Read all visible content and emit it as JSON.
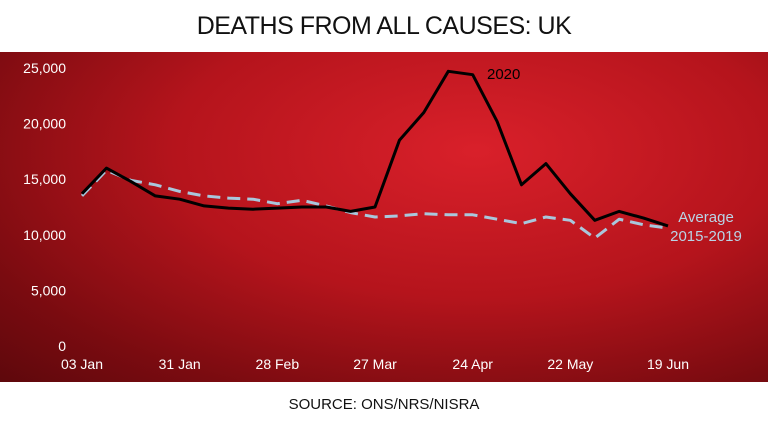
{
  "title": "DEATHS FROM ALL CAUSES: UK",
  "source": "SOURCE: ONS/NRS/NISRA",
  "colors": {
    "panel": "#b5141c",
    "series_2020": "#000000",
    "series_average": "#a9c7dc",
    "text": "#ffffff"
  },
  "chart_data": {
    "type": "line",
    "title": "DEATHS FROM ALL CAUSES: UK",
    "xlabel": "",
    "ylabel": "",
    "ylim": [
      0,
      25000
    ],
    "y_ticks": [
      "25,000",
      "20,000",
      "15,000",
      "10,000",
      "5,000",
      "0"
    ],
    "x_ticks": [
      "03 Jan",
      "31 Jan",
      "28 Feb",
      "27 Mar",
      "24 Apr",
      "22 May",
      "19 Jun"
    ],
    "x": [
      "03 Jan",
      "10 Jan",
      "17 Jan",
      "24 Jan",
      "31 Jan",
      "07 Feb",
      "14 Feb",
      "21 Feb",
      "28 Feb",
      "06 Mar",
      "13 Mar",
      "20 Mar",
      "27 Mar",
      "03 Apr",
      "10 Apr",
      "17 Apr",
      "24 Apr",
      "01 May",
      "08 May",
      "15 May",
      "22 May",
      "29 May",
      "05 Jun",
      "12 Jun",
      "19 Jun"
    ],
    "series": [
      {
        "name": "2020",
        "style": "solid",
        "values": [
          13700,
          16000,
          14800,
          13500,
          13200,
          12600,
          12400,
          12300,
          12400,
          12500,
          12500,
          12100,
          12500,
          18500,
          21000,
          24700,
          24400,
          20200,
          14500,
          16400,
          13700,
          11300,
          12100,
          11500,
          10800
        ]
      },
      {
        "name": "Average 2015-2019",
        "style": "dashed",
        "values": [
          13500,
          15800,
          14900,
          14500,
          13900,
          13500,
          13300,
          13200,
          12800,
          13100,
          12600,
          12000,
          11600,
          11700,
          11900,
          11800,
          11800,
          11400,
          11000,
          11600,
          11300,
          9700,
          11400,
          10900,
          10600
        ]
      }
    ],
    "series_labels": {
      "2020": "2020",
      "average_line1": "Average",
      "average_line2": "2015-2019"
    }
  }
}
